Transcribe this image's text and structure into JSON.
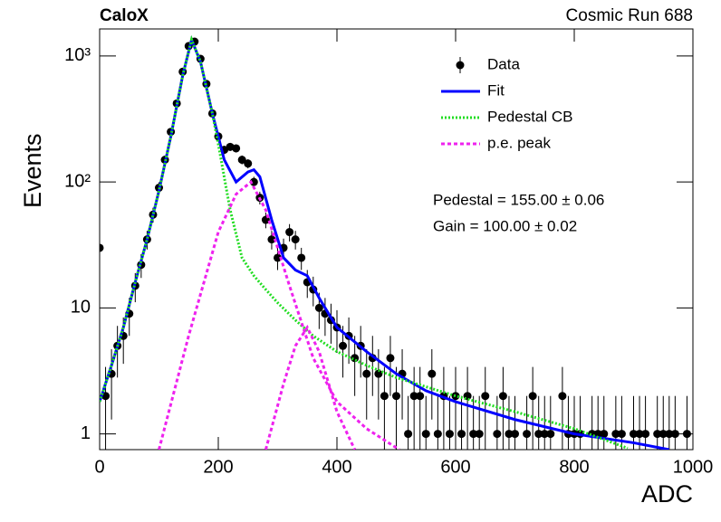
{
  "chart_data": {
    "type": "scatter",
    "title": "CaloX",
    "subtitle": "Cosmic Run 688",
    "xlabel": "ADC",
    "ylabel": "Events",
    "annotations": [
      "Pedestal = 155.00 ± 0.06",
      "Gain = 100.00 ± 0.02"
    ],
    "xlim": [
      0,
      1000
    ],
    "xticks": [
      0,
      200,
      400,
      600,
      800,
      1000
    ],
    "ylim": [
      0.75,
      1640
    ],
    "log_y": true,
    "yticks": [
      1,
      10,
      {
        "value": 100,
        "label": "10²"
      },
      {
        "value": 1000,
        "label": "10³"
      }
    ],
    "legend": "upper right",
    "series": [
      {
        "name": "Data",
        "kind": "points",
        "color": "#000000",
        "x": [
          0,
          10,
          20,
          30,
          40,
          50,
          60,
          70,
          80,
          90,
          100,
          110,
          120,
          130,
          140,
          150,
          160,
          170,
          180,
          190,
          200,
          210,
          220,
          230,
          240,
          250,
          260,
          270,
          280,
          290,
          300,
          310,
          320,
          330,
          340,
          350,
          360,
          370,
          380,
          390,
          400,
          410,
          420,
          430,
          440,
          450,
          460,
          470,
          480,
          490,
          500,
          510,
          520,
          530,
          540,
          550,
          560,
          570,
          580,
          590,
          600,
          610,
          620,
          630,
          640,
          650,
          660,
          670,
          680,
          690,
          700,
          710,
          720,
          730,
          740,
          750,
          760,
          770,
          780,
          790,
          800,
          810,
          820,
          830,
          840,
          850,
          860,
          870,
          880,
          890,
          900,
          910,
          920,
          930,
          940,
          950,
          960,
          970,
          980,
          990
        ],
        "values": [
          30,
          2,
          3,
          5,
          6,
          9,
          15,
          22,
          35,
          55,
          90,
          150,
          250,
          420,
          750,
          1200,
          1300,
          950,
          600,
          350,
          230,
          180,
          190,
          185,
          150,
          140,
          100,
          75,
          50,
          35,
          25,
          30,
          40,
          35,
          25,
          16,
          14,
          10,
          9,
          8,
          7,
          5,
          6,
          4,
          5,
          3,
          4,
          3,
          2,
          4,
          2,
          3,
          1,
          2,
          2,
          1,
          3,
          1,
          2,
          1,
          2,
          1,
          2,
          1,
          1,
          2,
          null,
          1,
          2,
          1,
          1,
          null,
          1,
          2,
          1,
          1,
          1,
          null,
          2,
          1,
          1,
          1,
          null,
          1,
          1,
          1,
          null,
          1,
          1,
          null,
          1,
          1,
          1,
          null,
          1,
          1,
          1,
          1,
          null,
          1
        ],
        "errors": [
          5.5,
          1.4,
          1.7,
          2.2,
          2.4,
          3,
          3.9,
          4.7,
          5.9,
          7.4,
          9.5,
          12.2,
          15.8,
          20.5,
          27.4,
          34.6,
          36.1,
          30.8,
          24.5,
          18.7,
          15.2,
          13.4,
          13.8,
          13.6,
          12.2,
          11.8,
          10,
          8.7,
          7.1,
          5.9,
          5,
          5.5,
          6.3,
          5.9,
          5,
          4,
          3.7,
          3.2,
          3,
          2.8,
          2.6,
          2.2,
          2.4,
          2,
          2.2,
          1.7,
          2,
          1.7,
          1.4,
          2,
          1.4,
          1.7,
          1,
          1.4,
          1.4,
          1,
          1.7,
          1,
          1.4,
          1,
          1.4,
          1,
          1.4,
          1,
          1,
          1.4,
          null,
          1,
          1.4,
          1,
          1,
          null,
          1,
          1.4,
          1,
          1,
          1,
          null,
          1.4,
          1,
          1,
          1,
          null,
          1,
          1,
          1,
          null,
          1,
          1,
          null,
          1,
          1,
          1,
          null,
          1,
          1,
          1,
          1,
          null,
          1
        ]
      },
      {
        "name": "Fit",
        "kind": "solid",
        "color": "#0000ff",
        "x": [
          0,
          20,
          40,
          60,
          80,
          100,
          120,
          140,
          155,
          170,
          190,
          210,
          230,
          250,
          260,
          270,
          290,
          310,
          330,
          350,
          370,
          400,
          450,
          500,
          550,
          600,
          700,
          800,
          900,
          960
        ],
        "values": [
          1.8,
          3.5,
          7,
          16,
          35,
          85,
          230,
          700,
          1350,
          900,
          350,
          150,
          100,
          120,
          125,
          110,
          50,
          25,
          20,
          18,
          12,
          7,
          4.5,
          3,
          2.2,
          1.8,
          1.3,
          1.0,
          0.85,
          0.75
        ]
      },
      {
        "name": "Pedestal CB",
        "kind": "dots",
        "color": "#22dd22",
        "x": [
          0,
          20,
          40,
          60,
          80,
          100,
          120,
          140,
          155,
          170,
          190,
          200,
          220,
          240,
          260,
          280,
          300,
          330,
          360,
          400,
          450,
          500,
          600,
          700,
          800,
          890
        ],
        "values": [
          1.8,
          3.5,
          7,
          16,
          35,
          85,
          230,
          700,
          1350,
          900,
          350,
          200,
          60,
          25,
          18,
          14,
          11,
          8,
          6,
          4.5,
          3.5,
          2.8,
          2,
          1.5,
          1.1,
          0.77
        ]
      },
      {
        "name": "p.e. peak",
        "kind": "dash",
        "color": "#ee22ee",
        "x": [
          100,
          150,
          200,
          230,
          255,
          280,
          320,
          360,
          400,
          450,
          505
        ],
        "values": [
          0.75,
          6,
          40,
          80,
          100,
          60,
          15,
          4,
          1.8,
          1.1,
          0.75
        ]
      },
      {
        "kind": "dash",
        "color": "#ee22ee",
        "x": [
          280,
          310,
          330,
          350,
          370,
          400,
          430
        ],
        "values": [
          0.75,
          2.5,
          5,
          7,
          4.5,
          1.5,
          0.75
        ]
      }
    ]
  }
}
